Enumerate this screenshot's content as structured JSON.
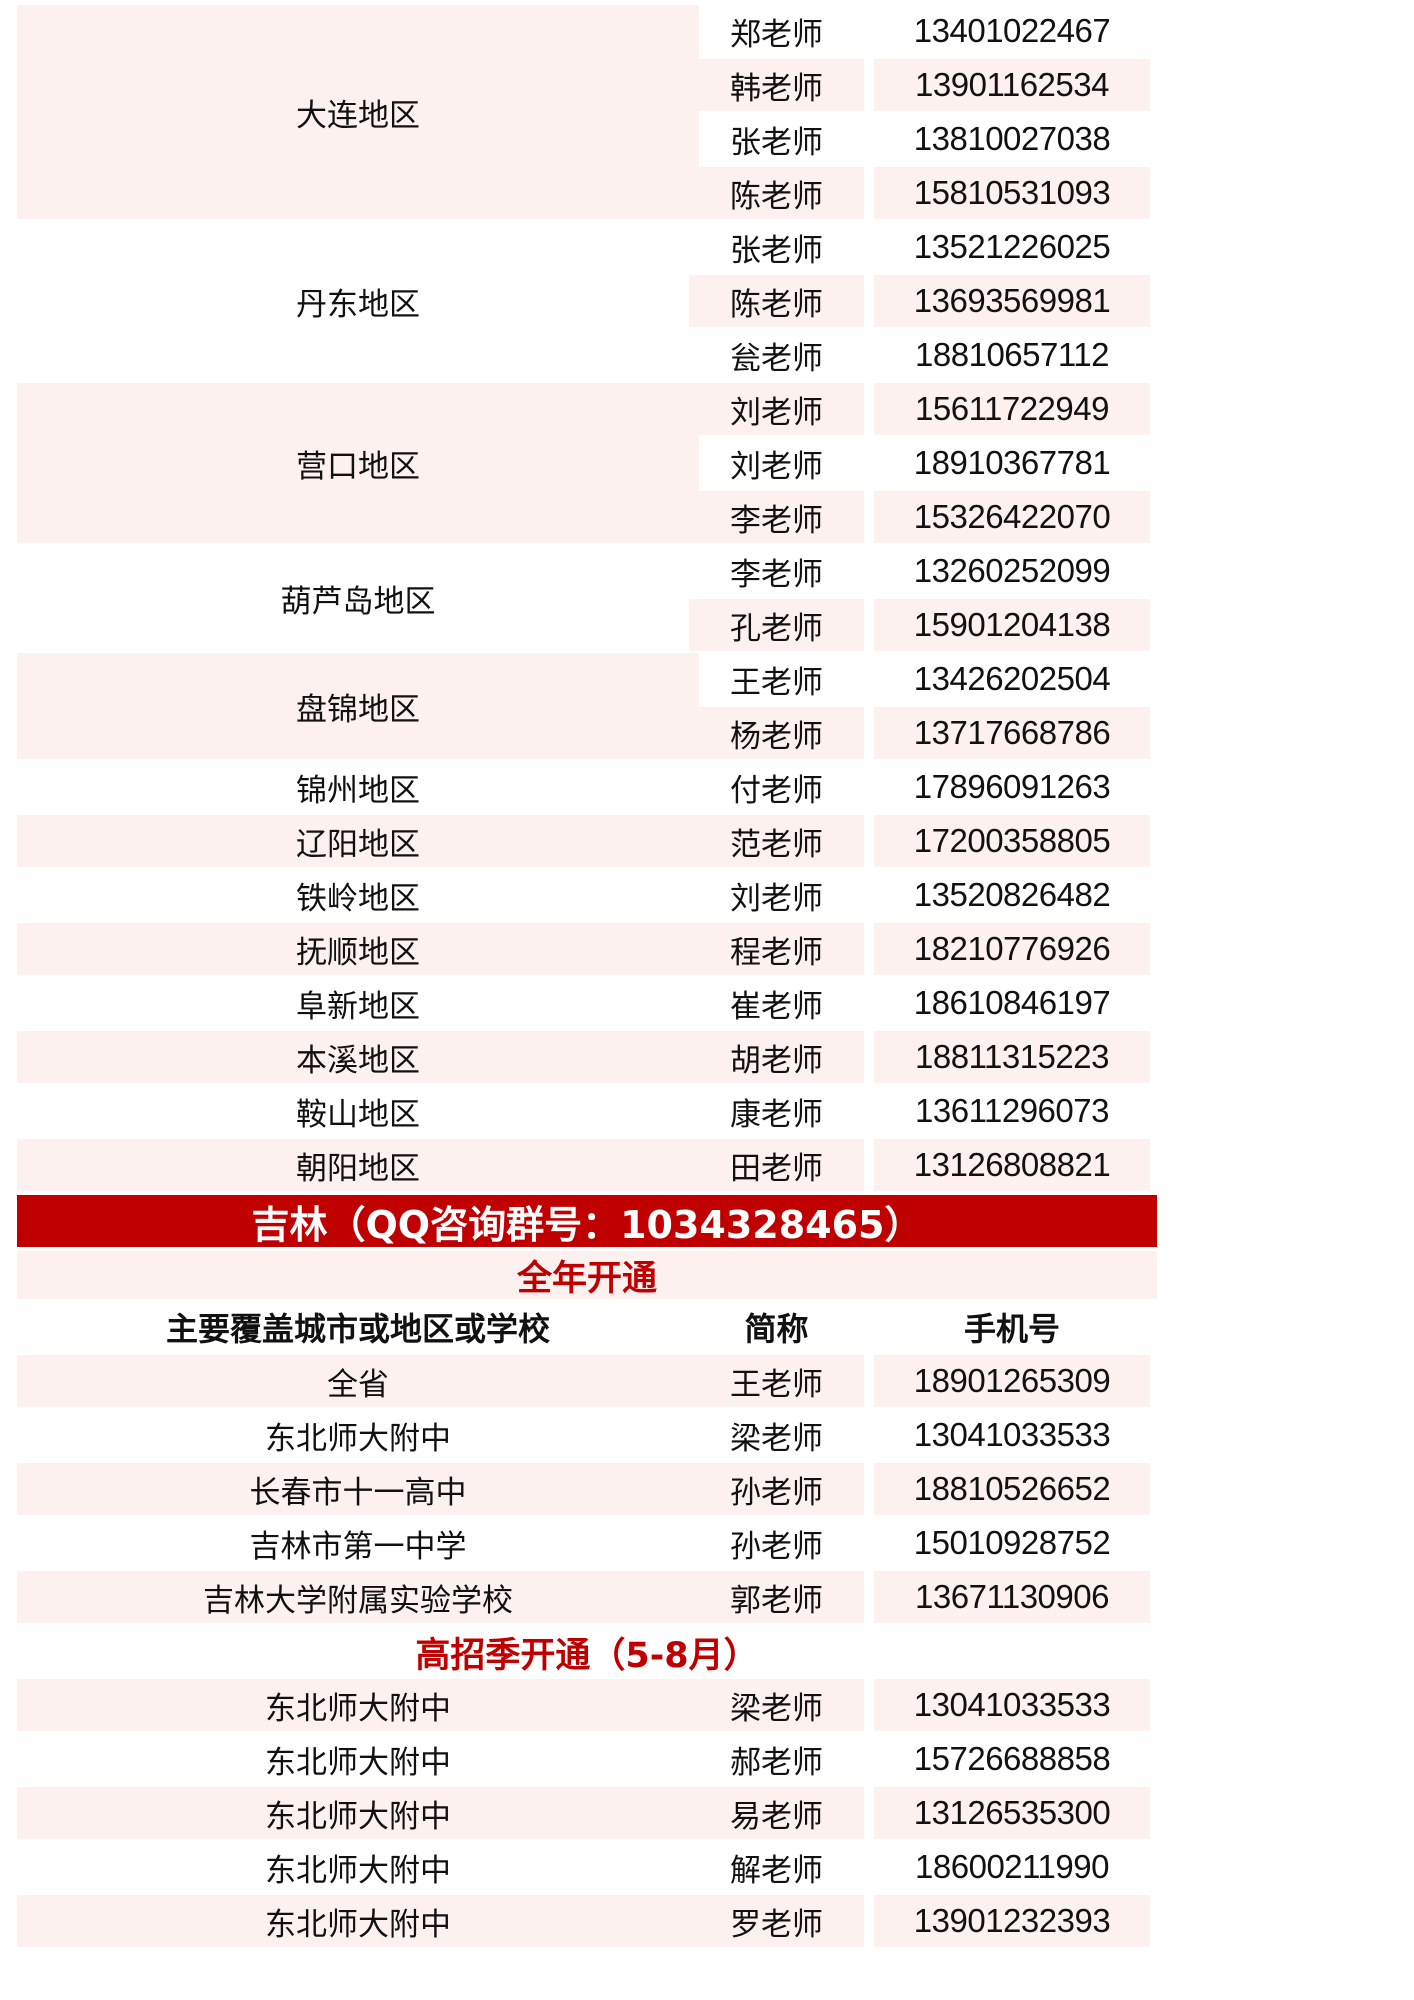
{
  "liaoning": [
    {
      "region": "大连地区",
      "contacts": [
        {
          "name": "郑老师",
          "phone": "13401022467"
        },
        {
          "name": "韩老师",
          "phone": "13901162534"
        },
        {
          "name": "张老师",
          "phone": "13810027038"
        },
        {
          "name": "陈老师",
          "phone": "15810531093"
        }
      ]
    },
    {
      "region": "丹东地区",
      "contacts": [
        {
          "name": "张老师",
          "phone": "13521226025"
        },
        {
          "name": "陈老师",
          "phone": "13693569981"
        },
        {
          "name": "瓮老师",
          "phone": "18810657112"
        }
      ]
    },
    {
      "region": "营口地区",
      "contacts": [
        {
          "name": "刘老师",
          "phone": "15611722949"
        },
        {
          "name": "刘老师",
          "phone": "18910367781"
        },
        {
          "name": "李老师",
          "phone": "15326422070"
        }
      ]
    },
    {
      "region": "葫芦岛地区",
      "contacts": [
        {
          "name": "李老师",
          "phone": "13260252099"
        },
        {
          "name": "孔老师",
          "phone": "15901204138"
        }
      ]
    },
    {
      "region": "盘锦地区",
      "contacts": [
        {
          "name": "王老师",
          "phone": "13426202504"
        },
        {
          "name": "杨老师",
          "phone": "13717668786"
        }
      ]
    },
    {
      "region": "锦州地区",
      "contacts": [
        {
          "name": "付老师",
          "phone": "17896091263"
        }
      ]
    },
    {
      "region": "辽阳地区",
      "contacts": [
        {
          "name": "范老师",
          "phone": "17200358805"
        }
      ]
    },
    {
      "region": "铁岭地区",
      "contacts": [
        {
          "name": "刘老师",
          "phone": "13520826482"
        }
      ]
    },
    {
      "region": "抚顺地区",
      "contacts": [
        {
          "name": "程老师",
          "phone": "18210776926"
        }
      ]
    },
    {
      "region": "阜新地区",
      "contacts": [
        {
          "name": "崔老师",
          "phone": "18610846197"
        }
      ]
    },
    {
      "region": "本溪地区",
      "contacts": [
        {
          "name": "胡老师",
          "phone": "18811315223"
        }
      ]
    },
    {
      "region": "鞍山地区",
      "contacts": [
        {
          "name": "康老师",
          "phone": "13611296073"
        }
      ]
    },
    {
      "region": "朝阳地区",
      "contacts": [
        {
          "name": "田老师",
          "phone": "13126808821"
        }
      ]
    }
  ],
  "jilin": {
    "banner": "吉林（QQ咨询群号：1034328465）",
    "full_year": {
      "title": "全年开通",
      "headers": [
        "主要覆盖城市或地区或学校",
        "简称",
        "手机号"
      ],
      "rows": [
        {
          "region": "全省",
          "name": "王老师",
          "phone": "18901265309"
        },
        {
          "region": "东北师大附中",
          "name": "梁老师",
          "phone": "13041033533"
        },
        {
          "region": "长春市十一高中",
          "name": "孙老师",
          "phone": "18810526652"
        },
        {
          "region": "吉林市第一中学",
          "name": "孙老师",
          "phone": "15010928752"
        },
        {
          "region": "吉林大学附属实验学校",
          "name": "郭老师",
          "phone": "13671130906"
        }
      ]
    },
    "season": {
      "title": "高招季开通（5-8月）",
      "rows": [
        {
          "region": "东北师大附中",
          "name": "梁老师",
          "phone": "13041033533"
        },
        {
          "region": "东北师大附中",
          "name": "郝老师",
          "phone": "15726688858"
        },
        {
          "region": "东北师大附中",
          "name": "易老师",
          "phone": "13126535300"
        },
        {
          "region": "东北师大附中",
          "name": "解老师",
          "phone": "18600211990"
        },
        {
          "region": "东北师大附中",
          "name": "罗老师",
          "phone": "13901232393"
        }
      ]
    }
  },
  "colors": {
    "banner": "#c00000",
    "accent_text": "#c00000",
    "row_shade": "#fcf1ef"
  }
}
